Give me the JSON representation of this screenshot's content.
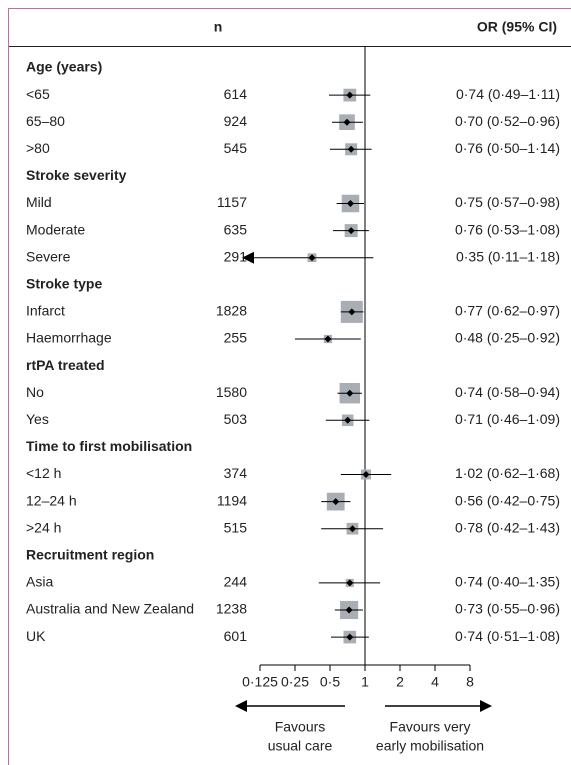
{
  "chart_data": {
    "type": "forest",
    "columns": {
      "n": "n",
      "ci": "OR (95% CI)"
    },
    "xscale": "log",
    "xlim": [
      0.125,
      8
    ],
    "xticks": [
      {
        "value": 0.125,
        "label": "0·125"
      },
      {
        "value": 0.25,
        "label": "0·25"
      },
      {
        "value": 0.5,
        "label": "0·5"
      },
      1,
      2,
      4,
      8
    ],
    "box_color": "#a9aeb4",
    "point_color": "#000000",
    "annotations": {
      "left": [
        "Favours",
        "usual care"
      ],
      "right": [
        "Favours very",
        "early mobilisation"
      ]
    },
    "groups": [
      {
        "name": "Age (years)",
        "rows": [
          {
            "label": "<65",
            "n": 614,
            "or": 0.74,
            "lower": 0.49,
            "upper": 1.11,
            "ci_label": "0·74 (0·49–1·11)"
          },
          {
            "label": "65–80",
            "n": 924,
            "or": 0.7,
            "lower": 0.52,
            "upper": 0.96,
            "ci_label": "0·70 (0·52–0·96)"
          },
          {
            "label": ">80",
            "n": 545,
            "or": 0.76,
            "lower": 0.5,
            "upper": 1.14,
            "ci_label": "0·76 (0·50–1·14)"
          }
        ]
      },
      {
        "name": "Stroke severity",
        "rows": [
          {
            "label": "Mild",
            "n": 1157,
            "or": 0.75,
            "lower": 0.57,
            "upper": 0.98,
            "ci_label": "0·75 (0·57–0·98)"
          },
          {
            "label": "Moderate",
            "n": 635,
            "or": 0.76,
            "lower": 0.53,
            "upper": 1.08,
            "ci_label": "0·76 (0·53–1·08)"
          },
          {
            "label": "Severe",
            "n": 291,
            "or": 0.35,
            "lower": 0.11,
            "upper": 1.18,
            "ci_label": "0·35 (0·11–1·18)"
          }
        ]
      },
      {
        "name": "Stroke type",
        "rows": [
          {
            "label": "Infarct",
            "n": 1828,
            "or": 0.77,
            "lower": 0.62,
            "upper": 0.97,
            "ci_label": "0·77 (0·62–0·97)"
          },
          {
            "label": "Haemorrhage",
            "n": 255,
            "or": 0.48,
            "lower": 0.25,
            "upper": 0.92,
            "ci_label": "0·48 (0·25–0·92)"
          }
        ]
      },
      {
        "name": "rtPA treated",
        "rows": [
          {
            "label": "No",
            "n": 1580,
            "or": 0.74,
            "lower": 0.58,
            "upper": 0.94,
            "ci_label": "0·74 (0·58–0·94)"
          },
          {
            "label": "Yes",
            "n": 503,
            "or": 0.71,
            "lower": 0.46,
            "upper": 1.09,
            "ci_label": "0·71 (0·46–1·09)"
          }
        ]
      },
      {
        "name": "Time to first mobilisation",
        "rows": [
          {
            "label": "<12 h",
            "n": 374,
            "or": 1.02,
            "lower": 0.62,
            "upper": 1.68,
            "ci_label": "1·02 (0·62–1·68)"
          },
          {
            "label": "12–24 h",
            "n": 1194,
            "or": 0.56,
            "lower": 0.42,
            "upper": 0.75,
            "ci_label": "0·56 (0·42–0·75)"
          },
          {
            "label": ">24 h",
            "n": 515,
            "or": 0.78,
            "lower": 0.42,
            "upper": 1.43,
            "ci_label": "0·78 (0·42–1·43)"
          }
        ]
      },
      {
        "name": "Recruitment region",
        "rows": [
          {
            "label": "Asia",
            "n": 244,
            "or": 0.74,
            "lower": 0.4,
            "upper": 1.35,
            "ci_label": "0·74 (0·40–1·35)"
          },
          {
            "label": "Australia and New Zealand",
            "n": 1238,
            "or": 0.73,
            "lower": 0.55,
            "upper": 0.96,
            "ci_label": "0·73 (0·55–0·96)"
          },
          {
            "label": "UK",
            "n": 601,
            "or": 0.74,
            "lower": 0.51,
            "upper": 1.08,
            "ci_label": "0·74 (0·51–1·08)"
          }
        ]
      }
    ]
  }
}
